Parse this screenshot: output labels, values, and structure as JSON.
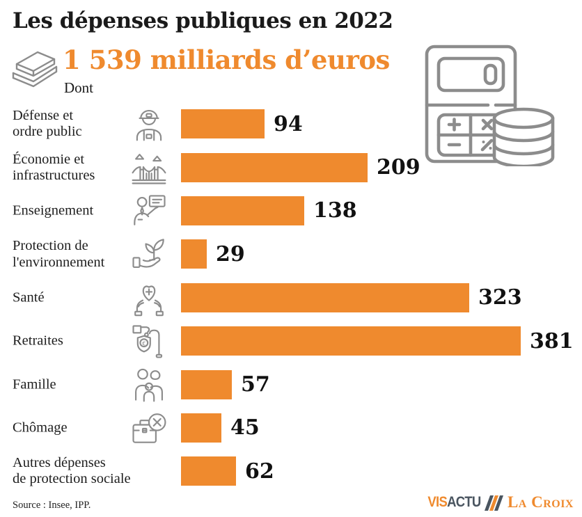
{
  "header": {
    "title": "Les dépenses publiques en 2022",
    "total_amount": "1 539",
    "total_suffix": " milliards d’euros",
    "dont_label": "Dont"
  },
  "chart_data": {
    "type": "bar",
    "orientation": "horizontal",
    "title": "Les dépenses publiques en 2022",
    "total_label": "1 539 milliards d’euros",
    "unit": "milliards d'euros",
    "categories": [
      "Défense et ordre public",
      "Économie et infrastructures",
      "Enseignement",
      "Protection de l'environnement",
      "Santé",
      "Retraites",
      "Famille",
      "Chômage",
      "Autres dépenses de protection sociale"
    ],
    "values": [
      94,
      209,
      138,
      29,
      323,
      381,
      57,
      45,
      62
    ],
    "max_value": 381,
    "bar_color": "#EF8A2E",
    "value_label_position": "right-of-bar",
    "grid": false,
    "legend": false
  },
  "rows": [
    {
      "label": "Défense et\nordre public",
      "value": "94",
      "icon": "soldier-icon"
    },
    {
      "label": "Économie et\ninfrastructures",
      "value": "209",
      "icon": "bridge-icon"
    },
    {
      "label": "Enseignement",
      "value": "138",
      "icon": "teacher-icon"
    },
    {
      "label": "Protection de\nl'environnement",
      "value": "29",
      "icon": "plant-hand-icon"
    },
    {
      "label": "Santé",
      "value": "323",
      "icon": "health-hands-icon"
    },
    {
      "label": "Retraites",
      "value": "381",
      "icon": "retirement-icon"
    },
    {
      "label": "Famille",
      "value": "57",
      "icon": "family-icon"
    },
    {
      "label": "Chômage",
      "value": "45",
      "icon": "briefcase-x-icon"
    },
    {
      "label": "Autres dépenses\nde protection sociale",
      "value": "62",
      "icon": ""
    }
  ],
  "footer": {
    "source": "Source : Insee, IPP.",
    "logo_visactu_vis": "VIS",
    "logo_visactu_actu": "ACTU",
    "logo_lacroix": "La Croix"
  },
  "colors": {
    "accent_orange": "#EF8A2E",
    "icon_gray": "#8C8C8C",
    "text_black": "#1a1a1a",
    "logo_slate": "#4A5560"
  }
}
